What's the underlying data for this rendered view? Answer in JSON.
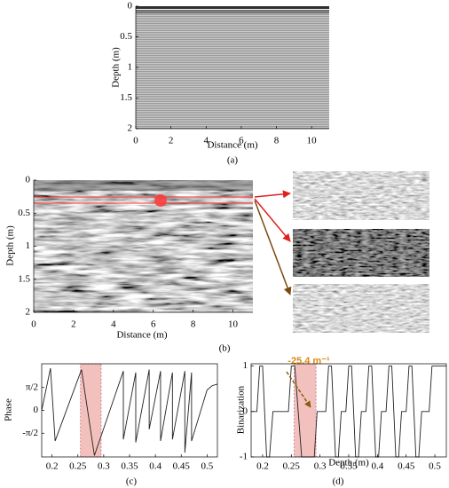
{
  "chart_data": [
    {
      "type": "radargram",
      "caption": "(a)",
      "x_label": "Distance (m)",
      "y_label": "Depth (m)",
      "xlim": [
        0,
        11
      ],
      "xticks": [
        0,
        2,
        4,
        6,
        8,
        10
      ],
      "ylim": [
        2,
        0
      ],
      "yticks": [
        0,
        0.5,
        1,
        1.5,
        2
      ]
    },
    {
      "type": "radargram",
      "caption": "(b)",
      "x_label": "Distance (m)",
      "y_label": "Depth (m)",
      "xlim": [
        0,
        11
      ],
      "xticks": [
        0,
        2,
        4,
        6,
        8,
        10
      ],
      "ylim": [
        2,
        0
      ],
      "yticks": [
        0,
        0.5,
        1,
        1.5,
        2
      ]
    },
    {
      "type": "line",
      "caption": "(c)",
      "y_label": "Phase",
      "color": "#222222",
      "highlight": [
        0.255,
        0.295
      ],
      "highlight_color": "#f3c1bd",
      "xlim": [
        0.18,
        0.52
      ],
      "xticks": [
        0.2,
        0.25,
        0.3,
        0.35,
        0.4,
        0.45,
        0.5
      ],
      "ylim": [
        -3.2,
        3.2
      ],
      "yticks": [
        {
          "value": 1.5708,
          "label": "π/2"
        },
        0,
        {
          "value": -1.5708,
          "label": "-π/2"
        }
      ],
      "x": [
        0.18,
        0.197,
        0.206,
        0.257,
        0.282,
        0.338,
        0.338,
        0.362,
        0.362,
        0.388,
        0.388,
        0.41,
        0.41,
        0.433,
        0.433,
        0.457,
        0.457,
        0.47,
        0.47,
        0.5,
        0.51,
        0.52
      ],
      "values": [
        0.0,
        2.9,
        -2.1,
        2.8,
        -3.1,
        2.7,
        -2.0,
        2.6,
        -2.2,
        2.8,
        -1.3,
        2.7,
        -2.1,
        2.6,
        -2.0,
        2.7,
        -2.9,
        2.6,
        -2.1,
        1.4,
        1.7,
        1.8
      ]
    },
    {
      "type": "line",
      "caption": "(d)",
      "x_label": "Depth (m)",
      "y_label": "Binarization",
      "color": "#222222",
      "highlight": [
        0.255,
        0.293
      ],
      "highlight_color": "#f3c1bd",
      "annotation": "-25.4 m⁻¹",
      "xlim": [
        0.18,
        0.52
      ],
      "xticks": [
        0.2,
        0.25,
        0.3,
        0.35,
        0.4,
        0.45,
        0.5
      ],
      "ylim": [
        -1,
        1.05
      ],
      "yticks": [
        -1,
        0,
        1
      ],
      "x": [
        0.18,
        0.19,
        0.195,
        0.2,
        0.207,
        0.212,
        0.218,
        0.245,
        0.25,
        0.256,
        0.268,
        0.29,
        0.295,
        0.31,
        0.315,
        0.32,
        0.327,
        0.332,
        0.337,
        0.345,
        0.35,
        0.355,
        0.362,
        0.367,
        0.372,
        0.38,
        0.385,
        0.39,
        0.397,
        0.402,
        0.407,
        0.415,
        0.42,
        0.425,
        0.432,
        0.437,
        0.442,
        0.45,
        0.455,
        0.46,
        0.467,
        0.472,
        0.477,
        0.49,
        0.495,
        0.52
      ],
      "values": [
        0,
        0,
        1,
        1,
        -1,
        -1,
        0,
        0,
        1,
        1,
        -1,
        -1,
        0,
        0,
        1,
        1,
        -1,
        -1,
        0,
        0,
        1,
        1,
        -1,
        -1,
        0,
        0,
        1,
        1,
        -1,
        -1,
        0,
        0,
        1,
        1,
        -1,
        -1,
        0,
        0,
        1,
        1,
        -1,
        -1,
        0,
        0,
        1,
        1
      ]
    }
  ]
}
